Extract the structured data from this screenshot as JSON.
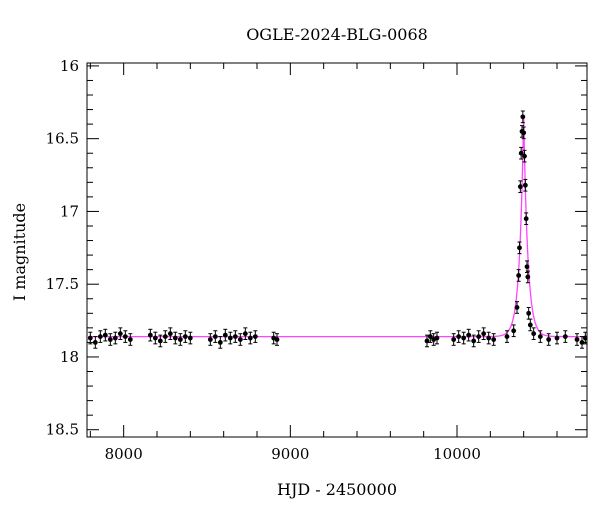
{
  "chart_data": {
    "type": "scatter",
    "title": "OGLE-2024-BLG-0068",
    "xlabel": "HJD - 2450000",
    "ylabel": "I magnitude",
    "xlim": [
      7780,
      10780
    ],
    "ylim": [
      18.55,
      15.98
    ],
    "y_inverted": true,
    "xticks": [
      8000,
      9000,
      10000
    ],
    "yticks": [
      16,
      16.5,
      17,
      17.5,
      18,
      18.5
    ],
    "grid": false,
    "colors": {
      "points": "#000000",
      "model": "#ff44ff"
    },
    "series": [
      {
        "kind": "points",
        "note_visible": false,
        "x": [
          7800,
          7830,
          7860,
          7890,
          7920,
          7950,
          7980,
          8010,
          8040,
          8160,
          8190,
          8220,
          8250,
          8280,
          8310,
          8340,
          8370,
          8400,
          8520,
          8550,
          8580,
          8610,
          8640,
          8670,
          8700,
          8730,
          8760,
          8790,
          8900,
          8920,
          9820,
          9840,
          9860,
          9880,
          9980,
          10010,
          10040,
          10070,
          10100,
          10130,
          10160,
          10190,
          10220,
          10300,
          10340,
          10360,
          10370,
          10375,
          10380,
          10385,
          10390,
          10395,
          10400,
          10405,
          10410,
          10415,
          10420,
          10425,
          10430,
          10440,
          10460,
          10500,
          10550,
          10600,
          10650,
          10720,
          10750,
          10770
        ],
        "y": [
          17.87,
          17.9,
          17.86,
          17.85,
          17.88,
          17.87,
          17.84,
          17.86,
          17.88,
          17.85,
          17.87,
          17.89,
          17.86,
          17.84,
          17.87,
          17.88,
          17.86,
          17.87,
          17.88,
          17.86,
          17.9,
          17.85,
          17.87,
          17.86,
          17.88,
          17.84,
          17.87,
          17.86,
          17.87,
          17.88,
          17.89,
          17.86,
          17.88,
          17.87,
          17.88,
          17.86,
          17.87,
          17.85,
          17.89,
          17.86,
          17.84,
          17.87,
          17.88,
          17.86,
          17.82,
          17.66,
          17.44,
          17.25,
          16.83,
          16.6,
          16.45,
          16.35,
          16.46,
          16.62,
          16.82,
          17.05,
          17.38,
          17.45,
          17.7,
          17.78,
          17.84,
          17.86,
          17.88,
          17.87,
          17.86,
          17.88,
          17.9,
          17.87
        ],
        "yerr": 0.04
      },
      {
        "kind": "model",
        "baseline": 17.86,
        "peak_x": 10400,
        "peak_y": 16.34,
        "tE": 30
      }
    ]
  }
}
